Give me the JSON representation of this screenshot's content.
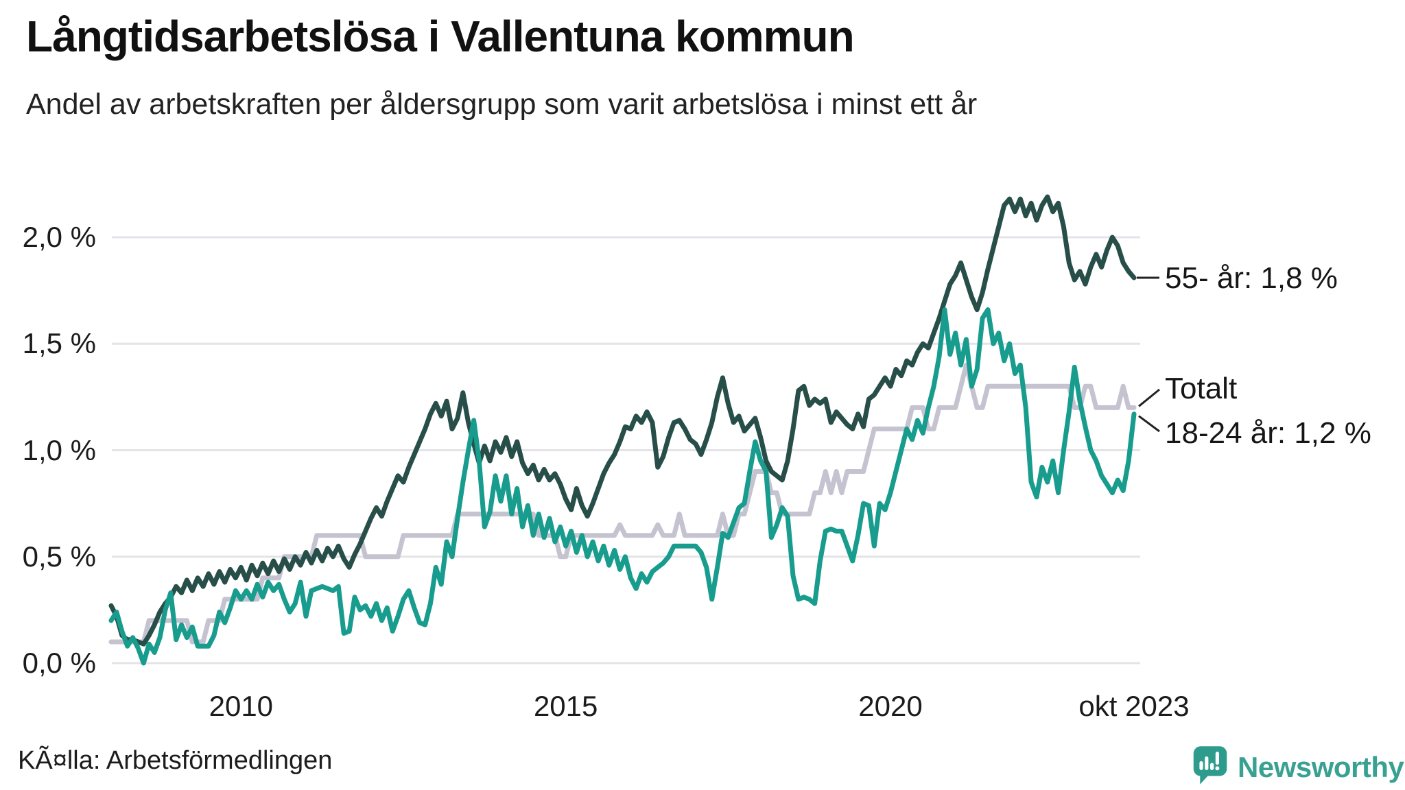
{
  "header": {
    "title": "Långtidsarbetslösa i Vallentuna kommun",
    "subtitle": "Andel av arbetskraften per åldersgrupp som varit arbetslösa i minst ett år"
  },
  "axes": {
    "y_ticks": [
      {
        "label": "0,0 %",
        "value": 0.0
      },
      {
        "label": "0,5 %",
        "value": 0.5
      },
      {
        "label": "1,0 %",
        "value": 1.0
      },
      {
        "label": "1,5 %",
        "value": 1.5
      },
      {
        "label": "2,0 %",
        "value": 2.0
      }
    ],
    "x_ticks": [
      {
        "label": "2010",
        "month": 24
      },
      {
        "label": "2015",
        "month": 84
      },
      {
        "label": "2020",
        "month": 144
      },
      {
        "label": "okt 2023",
        "month": 189
      }
    ]
  },
  "annotations": [
    {
      "id": "55",
      "text": "55- år: 1,8 %"
    },
    {
      "id": "totalt",
      "text": "Totalt"
    },
    {
      "id": "1824",
      "text": "18-24 år: 1,2 %"
    }
  ],
  "footer": {
    "source": "KÃ¤lla: Arbetsförmedlingen",
    "logo_text": "Newsworthy"
  },
  "colors": {
    "series_55": "#274E48",
    "series_totalt": "#C6C3D1",
    "series_1824": "#179C8D",
    "grid": "#E4E3E8",
    "leader": "#222222",
    "logo_teal": "#2E9C8D",
    "logo_text_teal": "#38A192"
  },
  "chart_data": {
    "type": "line",
    "title": "Långtidsarbetslösa i Vallentuna kommun",
    "subtitle": "Andel av arbetskraften per åldersgrupp som varit arbetslösa i minst ett år",
    "unit": "%",
    "x_start": "2008-01",
    "x_end": "2023-10",
    "x_resolution": "monthly",
    "ylim": [
      0,
      2.2
    ],
    "grid": true,
    "legend_position": "right-end-labels",
    "series": [
      {
        "name": "55- år",
        "end_label": "55- år: 1,8 %",
        "color": "#274E48",
        "values": [
          0.27,
          0.22,
          0.13,
          0.11,
          0.11,
          0.1,
          0.09,
          0.13,
          0.18,
          0.24,
          0.28,
          0.31,
          0.36,
          0.33,
          0.39,
          0.34,
          0.4,
          0.36,
          0.42,
          0.37,
          0.43,
          0.38,
          0.44,
          0.4,
          0.45,
          0.39,
          0.46,
          0.41,
          0.47,
          0.42,
          0.48,
          0.43,
          0.49,
          0.44,
          0.5,
          0.46,
          0.52,
          0.47,
          0.53,
          0.48,
          0.54,
          0.5,
          0.55,
          0.49,
          0.45,
          0.51,
          0.56,
          0.62,
          0.68,
          0.73,
          0.69,
          0.76,
          0.82,
          0.88,
          0.85,
          0.92,
          0.98,
          1.04,
          1.1,
          1.17,
          1.22,
          1.16,
          1.23,
          1.1,
          1.15,
          1.27,
          1.13,
          1.03,
          0.94,
          1.02,
          0.95,
          1.04,
          0.99,
          1.06,
          0.97,
          1.04,
          0.94,
          0.89,
          0.93,
          0.86,
          0.91,
          0.86,
          0.89,
          0.84,
          0.77,
          0.72,
          0.82,
          0.74,
          0.69,
          0.75,
          0.82,
          0.89,
          0.94,
          0.98,
          1.04,
          1.11,
          1.1,
          1.16,
          1.13,
          1.18,
          1.13,
          0.92,
          0.97,
          1.06,
          1.13,
          1.14,
          1.1,
          1.05,
          1.03,
          0.98,
          1.05,
          1.13,
          1.25,
          1.34,
          1.22,
          1.13,
          1.16,
          1.09,
          1.12,
          1.15,
          1.06,
          0.95,
          0.9,
          0.88,
          0.86,
          0.95,
          1.1,
          1.28,
          1.3,
          1.21,
          1.24,
          1.22,
          1.24,
          1.13,
          1.18,
          1.15,
          1.12,
          1.1,
          1.17,
          1.11,
          1.24,
          1.26,
          1.3,
          1.34,
          1.3,
          1.38,
          1.35,
          1.42,
          1.4,
          1.46,
          1.5,
          1.48,
          1.55,
          1.62,
          1.7,
          1.78,
          1.82,
          1.88,
          1.8,
          1.72,
          1.66,
          1.74,
          1.85,
          1.95,
          2.05,
          2.15,
          2.18,
          2.12,
          2.18,
          2.1,
          2.16,
          2.08,
          2.15,
          2.19,
          2.12,
          2.16,
          2.05,
          1.88,
          1.8,
          1.84,
          1.78,
          1.86,
          1.92,
          1.86,
          1.94,
          2.0,
          1.96,
          1.88,
          1.84,
          1.81
        ]
      },
      {
        "name": "Totalt",
        "end_label": "Totalt",
        "color": "#C6C3D1",
        "values": [
          0.1,
          0.1,
          0.1,
          0.1,
          0.1,
          0.1,
          0.1,
          0.2,
          0.2,
          0.2,
          0.2,
          0.2,
          0.2,
          0.2,
          0.2,
          0.1,
          0.1,
          0.1,
          0.2,
          0.2,
          0.2,
          0.3,
          0.3,
          0.3,
          0.3,
          0.3,
          0.3,
          0.3,
          0.4,
          0.4,
          0.4,
          0.4,
          0.5,
          0.5,
          0.5,
          0.5,
          0.5,
          0.5,
          0.6,
          0.6,
          0.6,
          0.6,
          0.6,
          0.6,
          0.6,
          0.6,
          0.6,
          0.5,
          0.5,
          0.5,
          0.5,
          0.5,
          0.5,
          0.5,
          0.6,
          0.6,
          0.6,
          0.6,
          0.6,
          0.6,
          0.6,
          0.6,
          0.6,
          0.6,
          0.7,
          0.7,
          0.7,
          0.7,
          0.7,
          0.7,
          0.7,
          0.7,
          0.7,
          0.7,
          0.7,
          0.7,
          0.7,
          0.7,
          0.7,
          0.6,
          0.6,
          0.6,
          0.6,
          0.5,
          0.5,
          0.6,
          0.6,
          0.6,
          0.6,
          0.6,
          0.6,
          0.6,
          0.6,
          0.6,
          0.65,
          0.6,
          0.6,
          0.6,
          0.6,
          0.6,
          0.6,
          0.65,
          0.6,
          0.6,
          0.6,
          0.7,
          0.6,
          0.6,
          0.6,
          0.6,
          0.6,
          0.6,
          0.6,
          0.7,
          0.6,
          0.6,
          0.7,
          0.7,
          0.8,
          0.9,
          0.9,
          0.9,
          0.8,
          0.8,
          0.7,
          0.7,
          0.7,
          0.7,
          0.7,
          0.7,
          0.8,
          0.8,
          0.9,
          0.8,
          0.9,
          0.8,
          0.9,
          0.9,
          0.9,
          0.9,
          1.0,
          1.1,
          1.1,
          1.1,
          1.1,
          1.1,
          1.1,
          1.1,
          1.2,
          1.2,
          1.2,
          1.1,
          1.1,
          1.2,
          1.2,
          1.2,
          1.2,
          1.3,
          1.4,
          1.3,
          1.2,
          1.2,
          1.3,
          1.3,
          1.3,
          1.3,
          1.3,
          1.3,
          1.3,
          1.3,
          1.3,
          1.3,
          1.3,
          1.3,
          1.3,
          1.3,
          1.3,
          1.3,
          1.2,
          1.2,
          1.3,
          1.3,
          1.2,
          1.2,
          1.2,
          1.2,
          1.2,
          1.3,
          1.2,
          1.2
        ]
      },
      {
        "name": "18-24 år",
        "end_label": "18-24 år: 1,2 %",
        "color": "#179C8D",
        "values": [
          0.2,
          0.24,
          0.15,
          0.08,
          0.12,
          0.07,
          0.0,
          0.09,
          0.05,
          0.12,
          0.25,
          0.33,
          0.11,
          0.18,
          0.12,
          0.17,
          0.08,
          0.08,
          0.08,
          0.13,
          0.24,
          0.19,
          0.26,
          0.34,
          0.3,
          0.34,
          0.3,
          0.37,
          0.31,
          0.38,
          0.34,
          0.37,
          0.3,
          0.24,
          0.28,
          0.38,
          0.22,
          0.34,
          0.35,
          0.36,
          0.35,
          0.34,
          0.36,
          0.14,
          0.15,
          0.31,
          0.25,
          0.27,
          0.22,
          0.28,
          0.2,
          0.26,
          0.15,
          0.22,
          0.3,
          0.34,
          0.26,
          0.19,
          0.18,
          0.28,
          0.45,
          0.37,
          0.57,
          0.5,
          0.68,
          0.85,
          1.0,
          1.14,
          0.95,
          0.64,
          0.71,
          0.88,
          0.76,
          0.88,
          0.7,
          0.82,
          0.64,
          0.74,
          0.6,
          0.7,
          0.59,
          0.68,
          0.57,
          0.64,
          0.55,
          0.62,
          0.52,
          0.6,
          0.5,
          0.57,
          0.48,
          0.55,
          0.46,
          0.53,
          0.44,
          0.5,
          0.4,
          0.35,
          0.42,
          0.38,
          0.43,
          0.45,
          0.47,
          0.5,
          0.55,
          0.55,
          0.55,
          0.55,
          0.55,
          0.52,
          0.45,
          0.3,
          0.45,
          0.61,
          0.59,
          0.66,
          0.73,
          0.75,
          0.9,
          1.04,
          0.95,
          0.9,
          0.59,
          0.65,
          0.73,
          0.69,
          0.41,
          0.3,
          0.31,
          0.3,
          0.28,
          0.48,
          0.62,
          0.63,
          0.62,
          0.62,
          0.55,
          0.48,
          0.6,
          0.75,
          0.74,
          0.55,
          0.75,
          0.72,
          0.8,
          0.9,
          1.0,
          1.1,
          1.05,
          1.14,
          1.08,
          1.2,
          1.3,
          1.44,
          1.66,
          1.45,
          1.55,
          1.4,
          1.52,
          1.3,
          1.38,
          1.62,
          1.66,
          1.5,
          1.55,
          1.42,
          1.5,
          1.36,
          1.4,
          1.2,
          0.85,
          0.78,
          0.92,
          0.85,
          0.95,
          0.8,
          1.0,
          1.18,
          1.39,
          1.23,
          1.11,
          1.0,
          0.95,
          0.88,
          0.84,
          0.8,
          0.86,
          0.81,
          0.95,
          1.17
        ]
      }
    ]
  }
}
